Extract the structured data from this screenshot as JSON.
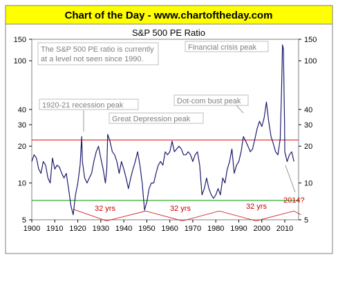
{
  "banner": {
    "text": "Chart of the Day - www.chartoftheday.com"
  },
  "chart_data": {
    "type": "line",
    "title": "S&P 500 PE Ratio",
    "y_scale": "log",
    "ylim": [
      5,
      150
    ],
    "xlim": [
      1900,
      2016
    ],
    "x_ticks": [
      {
        "value": 1900,
        "label": "1900"
      },
      {
        "value": 1910,
        "label": "1910"
      },
      {
        "value": 1920,
        "label": "1920"
      },
      {
        "value": 1930,
        "label": "1930"
      },
      {
        "value": 1940,
        "label": "1940"
      },
      {
        "value": 1950,
        "label": "1950"
      },
      {
        "value": 1960,
        "label": "1960"
      },
      {
        "value": 1970,
        "label": "1970"
      },
      {
        "value": 1980,
        "label": "1980"
      },
      {
        "value": 1990,
        "label": "1990"
      },
      {
        "value": 2000,
        "label": "2000"
      },
      {
        "value": 2010,
        "label": "2010"
      }
    ],
    "y_ticks": [
      {
        "value": 5,
        "label": "5"
      },
      {
        "value": 10,
        "label": "10"
      },
      {
        "value": 20,
        "label": "20"
      },
      {
        "value": 30,
        "label": "30"
      },
      {
        "value": 40,
        "label": "40"
      },
      {
        "value": 100,
        "label": "100"
      },
      {
        "value": 150,
        "label": "150"
      }
    ],
    "series": [
      {
        "color": "#1a1a6e",
        "points": [
          [
            1900,
            15
          ],
          [
            1901,
            17
          ],
          [
            1902,
            16
          ],
          [
            1903,
            13
          ],
          [
            1904,
            12
          ],
          [
            1905,
            15
          ],
          [
            1906,
            14
          ],
          [
            1907,
            11
          ],
          [
            1908,
            10
          ],
          [
            1909,
            16
          ],
          [
            1910,
            13
          ],
          [
            1911,
            14
          ],
          [
            1912,
            13.5
          ],
          [
            1913,
            12
          ],
          [
            1914,
            11
          ],
          [
            1915,
            12
          ],
          [
            1916,
            9
          ],
          [
            1917,
            6.5
          ],
          [
            1918,
            5.5
          ],
          [
            1919,
            8
          ],
          [
            1920,
            10
          ],
          [
            1921,
            14
          ],
          [
            1921.7,
            24
          ],
          [
            1922,
            15
          ],
          [
            1923,
            11
          ],
          [
            1924,
            10
          ],
          [
            1925,
            11
          ],
          [
            1926,
            12
          ],
          [
            1927,
            15
          ],
          [
            1928,
            18
          ],
          [
            1929,
            20
          ],
          [
            1930,
            16
          ],
          [
            1931,
            13
          ],
          [
            1932,
            10
          ],
          [
            1932.6,
            13
          ],
          [
            1933,
            25
          ],
          [
            1934,
            22
          ],
          [
            1935,
            18
          ],
          [
            1936,
            17
          ],
          [
            1937,
            15
          ],
          [
            1938,
            12
          ],
          [
            1939,
            15
          ],
          [
            1940,
            13
          ],
          [
            1941,
            11
          ],
          [
            1942,
            9
          ],
          [
            1943,
            11
          ],
          [
            1944,
            13
          ],
          [
            1945,
            15
          ],
          [
            1946,
            18
          ],
          [
            1947,
            14
          ],
          [
            1948,
            10
          ],
          [
            1949,
            6
          ],
          [
            1950,
            7
          ],
          [
            1951,
            9
          ],
          [
            1952,
            10
          ],
          [
            1953,
            10
          ],
          [
            1954,
            12
          ],
          [
            1955,
            14
          ],
          [
            1956,
            15
          ],
          [
            1957,
            14
          ],
          [
            1958,
            18
          ],
          [
            1959,
            17
          ],
          [
            1960,
            18
          ],
          [
            1961,
            22
          ],
          [
            1962,
            18
          ],
          [
            1963,
            19
          ],
          [
            1964,
            20
          ],
          [
            1965,
            19
          ],
          [
            1966,
            17
          ],
          [
            1967,
            17
          ],
          [
            1968,
            18
          ],
          [
            1969,
            17
          ],
          [
            1970,
            15
          ],
          [
            1971,
            17
          ],
          [
            1972,
            18
          ],
          [
            1973,
            14
          ],
          [
            1974,
            8
          ],
          [
            1975,
            9
          ],
          [
            1976,
            11
          ],
          [
            1977,
            9
          ],
          [
            1978,
            8
          ],
          [
            1979,
            7.5
          ],
          [
            1980,
            8
          ],
          [
            1981,
            9
          ],
          [
            1982,
            8
          ],
          [
            1983,
            11
          ],
          [
            1984,
            10
          ],
          [
            1985,
            13
          ],
          [
            1986,
            15
          ],
          [
            1987,
            19
          ],
          [
            1988,
            12
          ],
          [
            1989,
            14
          ],
          [
            1990,
            15
          ],
          [
            1991,
            18
          ],
          [
            1992,
            24
          ],
          [
            1993,
            22
          ],
          [
            1994,
            20
          ],
          [
            1995,
            18
          ],
          [
            1996,
            19
          ],
          [
            1997,
            23
          ],
          [
            1998,
            28
          ],
          [
            1999,
            32
          ],
          [
            2000,
            29
          ],
          [
            2001,
            34
          ],
          [
            2002,
            46
          ],
          [
            2003,
            32
          ],
          [
            2004,
            24
          ],
          [
            2005,
            21
          ],
          [
            2006,
            18
          ],
          [
            2007,
            17
          ],
          [
            2008,
            23
          ],
          [
            2008.6,
            60
          ],
          [
            2009,
            135
          ],
          [
            2009.4,
            125
          ],
          [
            2009.9,
            30
          ],
          [
            2010,
            18
          ],
          [
            2011,
            15
          ],
          [
            2012,
            17
          ],
          [
            2013,
            18
          ],
          [
            2014,
            15
          ]
        ]
      }
    ],
    "reference_lines": [
      {
        "value": 22.5,
        "color": "#e00000"
      },
      {
        "value": 7.2,
        "color": "#009a00"
      }
    ],
    "annotations": {
      "intro": [
        "The S&P 500 PE ratio is currently",
        "at a level not seen since 1990."
      ],
      "financial_crisis": "Financial crisis peak",
      "dotcom": "Dot-com bust peak",
      "recession_1920": "1920-21 recession peak",
      "great_depression": "Great Depression peak",
      "future": "2014?",
      "cycles": [
        "32 yrs",
        "32 yrs",
        "32 yrs"
      ]
    },
    "colors": {
      "frame": "#7f7f7f",
      "banner_bg": "#ffff00",
      "zigzag": "#cc0000"
    }
  }
}
